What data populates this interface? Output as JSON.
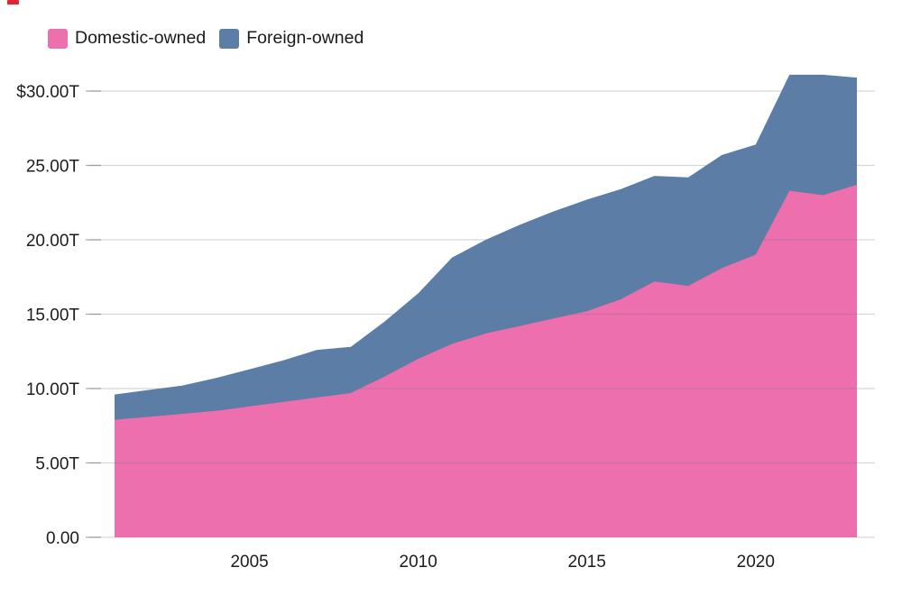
{
  "stray_mark_color": "#e12534",
  "legend": [
    {
      "label": "Domestic-owned",
      "color": "#ED6FAD"
    },
    {
      "label": "Foreign-owned",
      "color": "#5C7DA6"
    }
  ],
  "chart_data": {
    "type": "area",
    "stacked": true,
    "title": "",
    "xlabel": "",
    "ylabel": "",
    "unit": "trillion USD",
    "x": [
      2001,
      2002,
      2003,
      2004,
      2005,
      2006,
      2007,
      2008,
      2009,
      2010,
      2011,
      2012,
      2013,
      2014,
      2015,
      2016,
      2017,
      2018,
      2019,
      2020,
      2021,
      2022,
      2023
    ],
    "series": [
      {
        "name": "Domestic-owned",
        "color": "#ED6FAD",
        "values": [
          7.9,
          8.1,
          8.3,
          8.5,
          8.8,
          9.1,
          9.4,
          9.7,
          10.8,
          12.0,
          13.0,
          13.7,
          14.2,
          14.7,
          15.2,
          16.0,
          17.2,
          16.9,
          18.1,
          19.0,
          23.3,
          23.0,
          23.7
        ]
      },
      {
        "name": "Foreign-owned",
        "color": "#5C7DA6",
        "values": [
          1.7,
          1.8,
          1.9,
          2.2,
          2.5,
          2.8,
          3.2,
          3.1,
          3.7,
          4.4,
          5.8,
          6.3,
          6.8,
          7.2,
          7.5,
          7.4,
          7.1,
          7.3,
          7.6,
          7.4,
          7.8,
          8.1,
          7.2
        ]
      }
    ],
    "totals": [
      9.6,
      9.9,
      10.2,
      10.7,
      11.3,
      11.9,
      12.6,
      12.8,
      14.5,
      16.4,
      18.8,
      20.0,
      21.0,
      21.9,
      22.7,
      23.4,
      24.3,
      24.2,
      25.7,
      26.4,
      31.1,
      31.1,
      30.9
    ],
    "y_axis": {
      "tick_values": [
        30,
        25,
        20,
        15,
        10,
        5,
        0
      ],
      "tick_labels": [
        "$30.00T",
        "25.00T",
        "20.00T",
        "15.00T",
        "10.00T",
        "5.00T",
        "0.00"
      ]
    },
    "x_axis": {
      "tick_values": [
        2005,
        2010,
        2015,
        2020
      ],
      "tick_labels": [
        "2005",
        "2010",
        "2015",
        "2020"
      ]
    },
    "xlim": [
      2001,
      2023
    ],
    "ylim": [
      0,
      30
    ],
    "grid": true,
    "legend_position": "top-left"
  }
}
